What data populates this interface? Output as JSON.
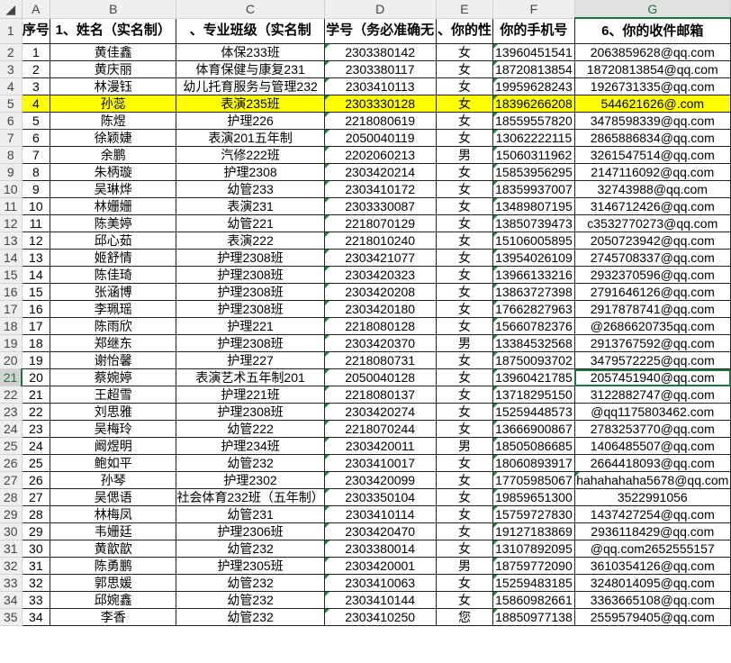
{
  "columns": [
    "A",
    "B",
    "C",
    "D",
    "E",
    "F",
    "G"
  ],
  "selected_cell": "G21",
  "highlight_color": "#ffff00",
  "accent_color": "#217346",
  "header_row": [
    "序号",
    "1、姓名（实名制）",
    "、专业班级（实名制",
    "学号（务必准确无",
    "、你的性",
    "你的手机号",
    "6、你的收件邮箱"
  ],
  "rows": [
    [
      "1",
      "黄佳鑫",
      "体保233班",
      "2303380142",
      "女",
      "13960451541",
      "2063859628@qq.com"
    ],
    [
      "2",
      "黄庆丽",
      "体育保健与康复231",
      "2303380117",
      "女",
      "18720813854",
      "18720813854@qq.com"
    ],
    [
      "3",
      "林漫钰",
      "幼儿托育服务与管理232",
      "2303410113",
      "女",
      "19959628243",
      "1926731335@qq.com"
    ],
    [
      "4",
      "孙蕊",
      "表演235班",
      "2303330128",
      "女",
      "18396266208",
      "544621626@.com"
    ],
    [
      "5",
      "陈煜",
      "护理226",
      "2218080619",
      "女",
      "18559557820",
      "3478598339@qq.com"
    ],
    [
      "6",
      "徐颖婕",
      "表演201五年制",
      "2050040119",
      "女",
      "13062222115",
      "2865886834@qq.com"
    ],
    [
      "7",
      "余鹏",
      "汽修222班",
      "2202060213",
      "男",
      "15060311962",
      "3261547514@qq.com"
    ],
    [
      "8",
      "朱柄璇",
      "护理2308",
      "2303420214",
      "女",
      "15853956295",
      "2147116092@qq.com"
    ],
    [
      "9",
      "吴琳烨",
      "幼管233",
      "2303410172",
      "女",
      "18359937007",
      "32743988@qq.com"
    ],
    [
      "10",
      "林姗姗",
      "表演231",
      "2303330087",
      "女",
      "13489807195",
      "3146712426@qq.com"
    ],
    [
      "11",
      "陈美婷",
      "幼管221",
      "2218070129",
      "女",
      "13850739473",
      "c3532770273@qq.com"
    ],
    [
      "12",
      "邱心茹",
      "表演222",
      "2218010240",
      "女",
      "15106005895",
      "2050723942@qq.com"
    ],
    [
      "13",
      "姬舒情",
      "护理2308班",
      "2303421077",
      "女",
      "13954026109",
      "2745708337@qq.com"
    ],
    [
      "14",
      "陈佳琦",
      "护理2308班",
      "2303420323",
      "女",
      "13966133216",
      "2932370596@qq.com"
    ],
    [
      "15",
      "张涵博",
      "护理2308班",
      "2303420208",
      "女",
      "13863727398",
      "2791646126@qq.com"
    ],
    [
      "16",
      "李珮瑶",
      "护理2308班",
      "2303420180",
      "女",
      "17662827963",
      "2917878741@qq.com"
    ],
    [
      "17",
      "陈雨欣",
      "护理221",
      "2218080128",
      "女",
      "15660782376",
      "@2686620735qq.com"
    ],
    [
      "18",
      "郑继东",
      "护理2308班",
      "2303420370",
      "男",
      "13384532568",
      "2913767592@qq.com"
    ],
    [
      "19",
      "谢怡馨",
      "护理227",
      "2218080731",
      "女",
      "18750093702",
      "3479572225@qq.com"
    ],
    [
      "20",
      "蔡婉婷",
      "表演艺术五年制201",
      "2050040128",
      "女",
      "13960421785",
      "2057451940@qq.com"
    ],
    [
      "21",
      "王超雪",
      "护理221班",
      "2218080137",
      "女",
      "13718295150",
      "3122882747@qq.com"
    ],
    [
      "22",
      "刘思雅",
      "护理2308班",
      "2303420274",
      "女",
      "15259448573",
      "@qq1175803462.com"
    ],
    [
      "23",
      "吴梅玲",
      "幼管222",
      "2218070244",
      "女",
      "13666900867",
      "2783253770@qq.com"
    ],
    [
      "24",
      "阚煜明",
      "护理234班",
      "2303420011",
      "男",
      "18505086685",
      "1406485507@qq.com"
    ],
    [
      "25",
      "鲍如平",
      "幼管232",
      "2303410017",
      "女",
      "18060893917",
      "2664418093@qq.com"
    ],
    [
      "26",
      "孙琴",
      "护理2302",
      "2303420099",
      "女",
      "17705985067",
      "hahahahaha5678@qq.com"
    ],
    [
      "27",
      "吴偲语",
      "社会体育232班（五年制）",
      "2303350104",
      "女",
      "19859651300",
      "3522991056"
    ],
    [
      "28",
      "林梅凤",
      "幼管231",
      "2303410114",
      "女",
      "15759727830",
      "1437427254@qq.com"
    ],
    [
      "29",
      "韦姗廷",
      "护理2306班",
      "2303420470",
      "女",
      "19127183869",
      "2936118429@qq.com"
    ],
    [
      "30",
      "黄歆歆",
      "幼管232",
      "2303380014",
      "女",
      "13107892095",
      "@qq.com2652555157"
    ],
    [
      "31",
      "陈勇鹏",
      "护理2305班",
      "2303420001",
      "男",
      "18759772090",
      "3610354126@qq.com"
    ],
    [
      "32",
      "郭思媛",
      "幼管232",
      "2303410063",
      "女",
      "15259483185",
      "3248014095@qq.com"
    ],
    [
      "33",
      "邱婉鑫",
      "幼管232",
      "2303410144",
      "女",
      "15860982661",
      "3363665108@qq.com"
    ],
    [
      "34",
      "李香",
      "幼管232",
      "2303410250",
      "您",
      "18850977138",
      "2559579405@qq.com"
    ]
  ]
}
